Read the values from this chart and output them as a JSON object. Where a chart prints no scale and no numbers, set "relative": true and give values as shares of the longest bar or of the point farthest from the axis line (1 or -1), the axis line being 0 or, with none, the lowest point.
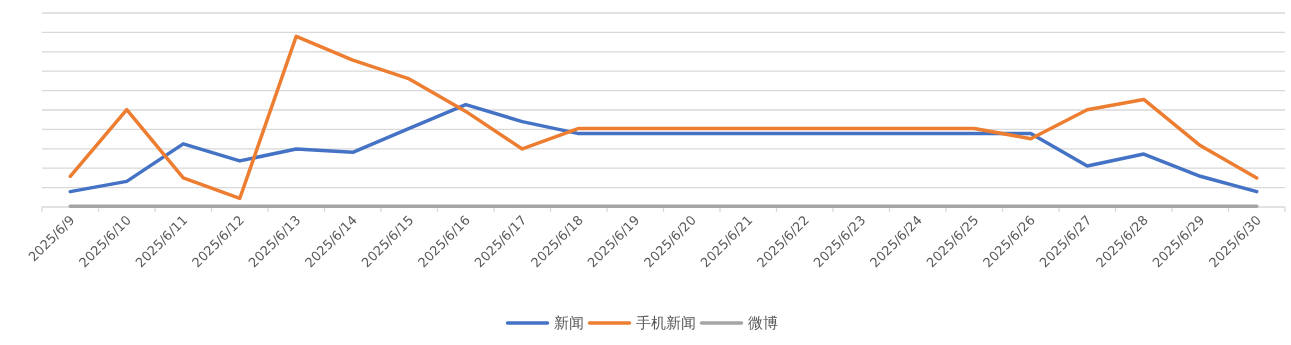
{
  "chart_data": {
    "type": "line",
    "relative": true,
    "grid": "y",
    "legend": "bottom",
    "marker": "none",
    "line_style": "solid",
    "categories": [
      "2025/6/9",
      "2025/6/10",
      "2025/6/11",
      "2025/6/12",
      "2025/6/13",
      "2025/6/14",
      "2025/6/15",
      "2025/6/16",
      "2025/6/17",
      "2025/6/18",
      "2025/6/19",
      "2025/6/20",
      "2025/6/21",
      "2025/6/22",
      "2025/6/23",
      "2025/6/24",
      "2025/6/25",
      "2025/6/26",
      "2025/6/27",
      "2025/6/28",
      "2025/6/29",
      "2025/6/30"
    ],
    "series": [
      {
        "name": "新闻",
        "color": "#4472c4",
        "values": [
          0.09,
          0.15,
          0.37,
          0.27,
          0.34,
          0.32,
          0.46,
          0.6,
          0.5,
          0.43,
          0.43,
          0.43,
          0.43,
          0.43,
          0.43,
          0.43,
          0.43,
          0.43,
          0.24,
          0.31,
          0.18,
          0.09
        ]
      },
      {
        "name": "手机新闻",
        "color": "#ed7d31",
        "values": [
          0.18,
          0.57,
          0.17,
          0.05,
          1,
          0.86,
          0.75,
          0.56,
          0.34,
          0.46,
          0.46,
          0.46,
          0.46,
          0.46,
          0.46,
          0.46,
          0.46,
          0.4,
          0.57,
          0.63,
          0.36,
          0.17
        ]
      },
      {
        "name": "微博",
        "color": "#a5a5a5",
        "values": [
          0.005,
          0.005,
          0.005,
          0.005,
          0.005,
          0.005,
          0.005,
          0.005,
          0.005,
          0.005,
          0.005,
          0.005,
          0.005,
          0.005,
          0.005,
          0.005,
          0.005,
          0.005,
          0.005,
          0.005,
          0.005,
          0.005
        ]
      }
    ]
  }
}
